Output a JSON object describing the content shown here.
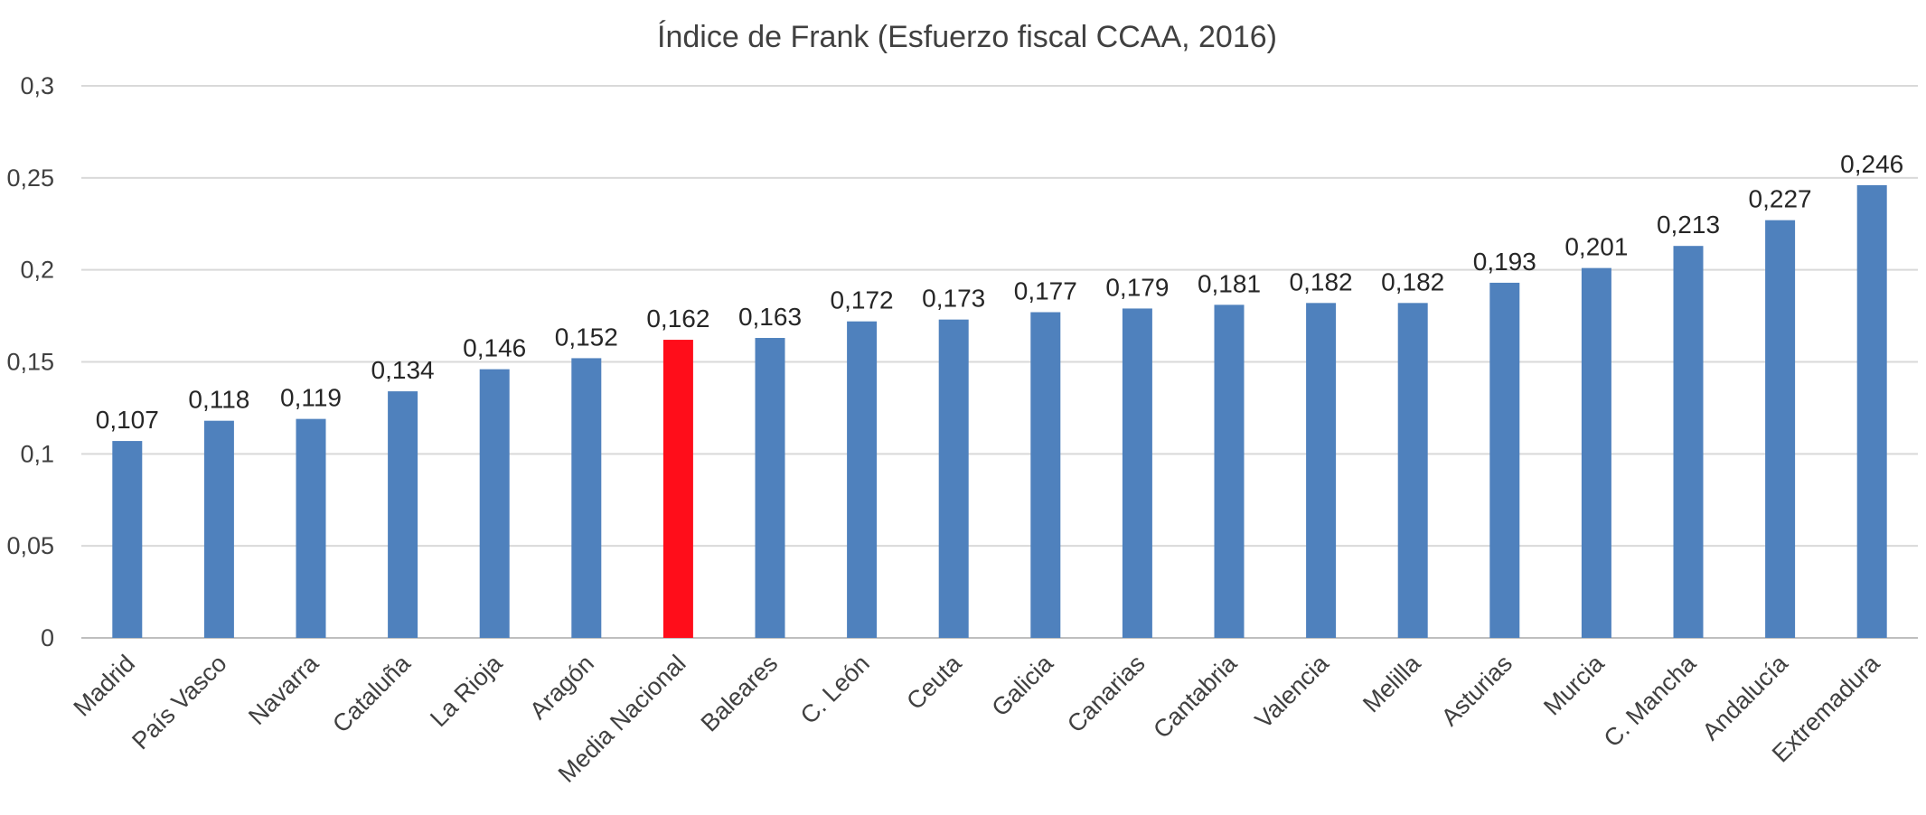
{
  "chart_data": {
    "type": "bar",
    "title": "Índice de Frank (Esfuerzo fiscal CCAA, 2016)",
    "xlabel": "",
    "ylabel": "",
    "ylim": [
      0,
      0.3
    ],
    "yticks": [
      0,
      0.05,
      0.1,
      0.15,
      0.2,
      0.25,
      0.3
    ],
    "ytick_labels": [
      "0",
      "0,05",
      "0,1",
      "0,15",
      "0,2",
      "0,25",
      "0,3"
    ],
    "grid": true,
    "legend": "none",
    "categories": [
      "Madrid",
      "País Vasco",
      "Navarra",
      "Cataluña",
      "La Rioja",
      "Aragón",
      "Media Nacional",
      "Baleares",
      "C. León",
      "Ceuta",
      "Galicia",
      "Canarias",
      "Cantabria",
      "Valencia",
      "Melilla",
      "Asturias",
      "Murcia",
      "C. Mancha",
      "Andalucía",
      "Extremadura"
    ],
    "values": [
      0.107,
      0.118,
      0.119,
      0.134,
      0.146,
      0.152,
      0.162,
      0.163,
      0.172,
      0.173,
      0.177,
      0.179,
      0.181,
      0.182,
      0.182,
      0.193,
      0.201,
      0.213,
      0.227,
      0.246
    ],
    "value_labels": [
      "0,107",
      "0,118",
      "0,119",
      "0,134",
      "0,146",
      "0,152",
      "0,162",
      "0,163",
      "0,172",
      "0,173",
      "0,177",
      "0,179",
      "0,181",
      "0,182",
      "0,182",
      "0,193",
      "0,201",
      "0,213",
      "0,227",
      "0,246"
    ],
    "colors": {
      "default": "#4f81bd",
      "highlight": "#ff0d1a",
      "highlight_category": "Media Nacional"
    }
  }
}
